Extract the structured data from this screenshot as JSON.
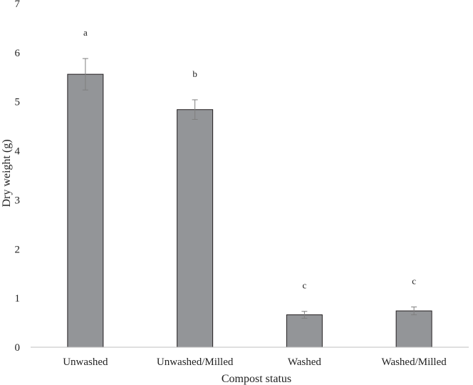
{
  "chart_data": {
    "type": "bar",
    "title": "",
    "xlabel": "Compost status",
    "ylabel": "Dry weight (g)",
    "ylim": [
      0,
      7
    ],
    "yticks": [
      0,
      1,
      2,
      3,
      4,
      5,
      6,
      7
    ],
    "grid": false,
    "categories": [
      "Unwashed",
      "Unwashed/Milled",
      "Washed",
      "Washed/Milled"
    ],
    "values": [
      5.56,
      4.84,
      0.66,
      0.74
    ],
    "errors": [
      0.32,
      0.2,
      0.07,
      0.08
    ],
    "significance_labels": [
      "a",
      "b",
      "c",
      "c"
    ],
    "bar_color": "#939598",
    "bar_edge_color": "#231f20"
  }
}
